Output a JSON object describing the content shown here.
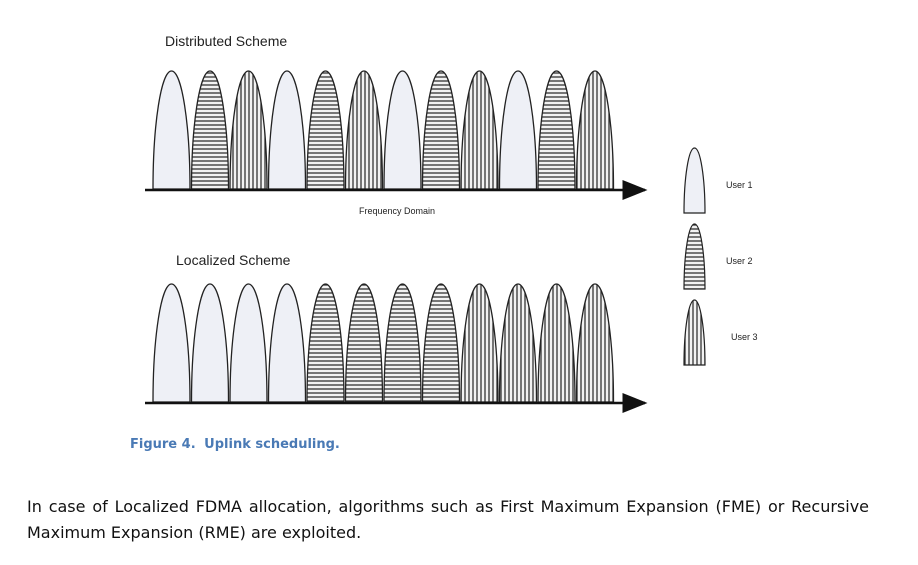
{
  "figure": {
    "distributed_title": "Distributed Scheme",
    "localized_title": "Localized Scheme",
    "axis_label": "Frequency Domain",
    "legend": [
      {
        "label": "User 1",
        "pattern": "plain"
      },
      {
        "label": "User 2",
        "pattern": "horizontal"
      },
      {
        "label": "User 3",
        "pattern": "vertical"
      }
    ],
    "distributed_sequence": [
      "User 1",
      "User 2",
      "User 3",
      "User 1",
      "User 2",
      "User 3",
      "User 1",
      "User 2",
      "User 3",
      "User 1",
      "User 2",
      "User 3"
    ],
    "localized_sequence": [
      "User 1",
      "User 1",
      "User 1",
      "User 1",
      "User 2",
      "User 2",
      "User 2",
      "User 2",
      "User 3",
      "User 3",
      "User 3",
      "User 3"
    ]
  },
  "caption": {
    "number": "Figure 4.",
    "text": "Uplink scheduling."
  },
  "paragraph": "In case of Localized FDMA allocation, algorithms such as First Maximum Expansion (FME) or Recursive Maximum Expansion (RME) are exploited.",
  "colors": {
    "caption": "#4a7ab5",
    "lobe_fill": "#eef0f6",
    "stroke": "#222222"
  }
}
